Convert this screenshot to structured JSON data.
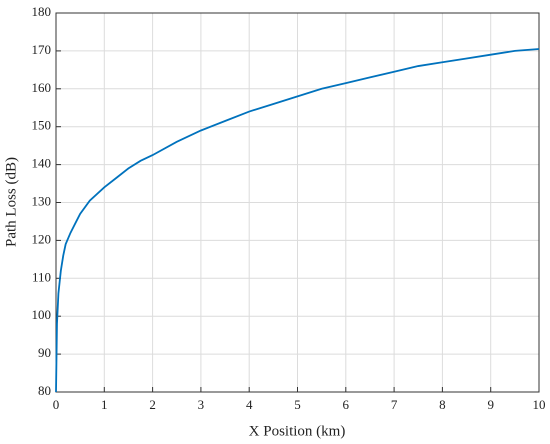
{
  "chart_data": {
    "type": "line",
    "xlabel": "X Position (km)",
    "ylabel": "Path Loss (dB)",
    "x": [
      0,
      0.02,
      0.05,
      0.1,
      0.15,
      0.2,
      0.3,
      0.4,
      0.5,
      0.7,
      1,
      1.25,
      1.5,
      1.75,
      2,
      2.5,
      3,
      3.5,
      4,
      4.5,
      5,
      5.5,
      6,
      6.5,
      7,
      7.5,
      8,
      8.5,
      9,
      9.5,
      10
    ],
    "series": [
      {
        "color": "#0072bd",
        "values": [
          80,
          98,
          106,
          112,
          116,
          119,
          122,
          124.5,
          127,
          130.5,
          134,
          136.5,
          139,
          141,
          142.5,
          146,
          149,
          151.5,
          154,
          156,
          158,
          160,
          161.5,
          163,
          164.5,
          166,
          167,
          168,
          169,
          170,
          170.5
        ]
      }
    ],
    "xlim": [
      0,
      10
    ],
    "xticks": [
      0,
      1,
      2,
      3,
      4,
      5,
      6,
      7,
      8,
      9,
      10
    ],
    "ylim": [
      80,
      180
    ],
    "yticks": [
      80,
      90,
      100,
      110,
      120,
      130,
      140,
      150,
      160,
      170,
      180
    ],
    "grid": true
  }
}
